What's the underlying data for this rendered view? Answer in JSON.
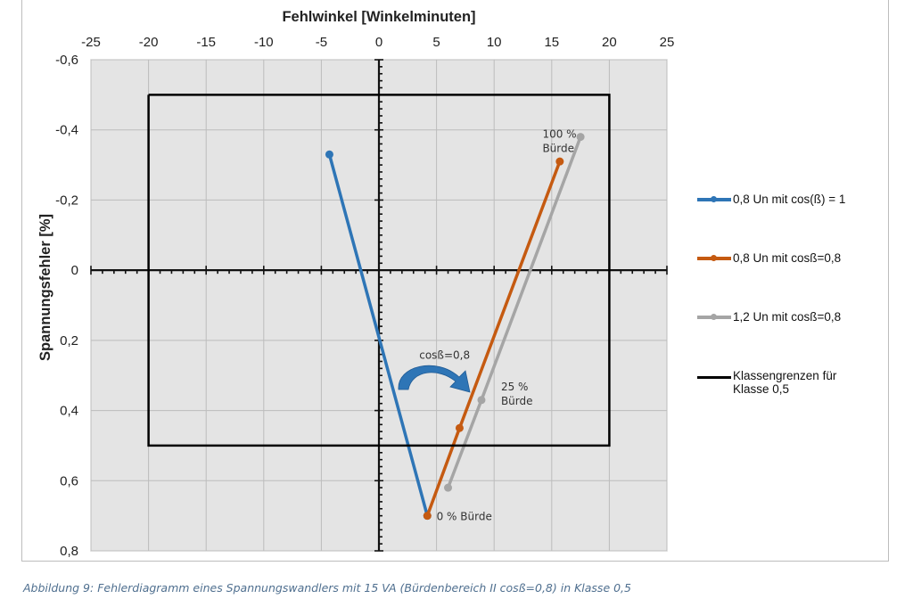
{
  "chart_data": {
    "type": "line",
    "title": "Fehlwinkel [Winkelminuten]",
    "xlabel": "Fehlwinkel [Winkelminuten]",
    "ylabel": "Spannungsfehler [%]",
    "xlim": [
      -25,
      25
    ],
    "ylim": [
      0.8,
      -0.6
    ],
    "y_inverted": true,
    "x_axis_position": "top",
    "x_ticks": [
      -25,
      -20,
      -15,
      -10,
      -5,
      0,
      5,
      10,
      15,
      20,
      25
    ],
    "x_tick_labels": [
      "-25",
      "-20",
      "-15",
      "-10",
      "-5",
      "0",
      "5",
      "10",
      "15",
      "20",
      "25"
    ],
    "y_ticks": [
      -0.6,
      -0.4,
      -0.2,
      0,
      0.2,
      0.4,
      0.6,
      0.8
    ],
    "y_tick_labels": [
      "-0,6",
      "-0,4",
      "-0,2",
      "0",
      "0,2",
      "0,4",
      "0,6",
      "0,8"
    ],
    "grid": true,
    "legend_placement": "right",
    "series": [
      {
        "name": "0,8 Un mit cos(ß) = 1",
        "color": "#2e75b6",
        "markers": true,
        "x": [
          -4.3,
          4.2
        ],
        "y": [
          -0.33,
          0.7
        ]
      },
      {
        "name": "0,8 Un mit cosß=0,8",
        "color": "#c55a11",
        "markers": true,
        "x": [
          4.2,
          7.0,
          15.7
        ],
        "y": [
          0.7,
          0.45,
          -0.31
        ]
      },
      {
        "name": "1,2 Un mit cosß=0,8",
        "color": "#a5a5a5",
        "markers": true,
        "x": [
          6.0,
          8.9,
          17.5
        ],
        "y": [
          0.62,
          0.37,
          -0.38
        ]
      },
      {
        "name": "Klassengrenzen für Klasse 0,5",
        "color": "#000000",
        "markers": false,
        "x": [
          -20,
          20,
          20,
          -20,
          -20
        ],
        "y": [
          -0.5,
          -0.5,
          0.5,
          0.5,
          -0.5
        ]
      }
    ],
    "annotations": [
      {
        "text_lines": [
          "100 %",
          "Bürde"
        ],
        "x": 14.2,
        "y": -0.39
      },
      {
        "text_lines": [
          "25 %",
          "Bürde"
        ],
        "x": 10.6,
        "y": 0.33
      },
      {
        "text_lines": [
          "0 % Bürde"
        ],
        "x": 5.0,
        "y": 0.7
      },
      {
        "text_lines": [
          "cosß=0,8"
        ],
        "x": 3.5,
        "y": 0.24
      }
    ],
    "arrow_color": "#2e75b6"
  },
  "caption": "Abbildung 9: Fehlerdiagramm eines Spannungswandlers mit 15 VA (Bürdenbereich II cosß=0,8) in Klasse 0,5"
}
